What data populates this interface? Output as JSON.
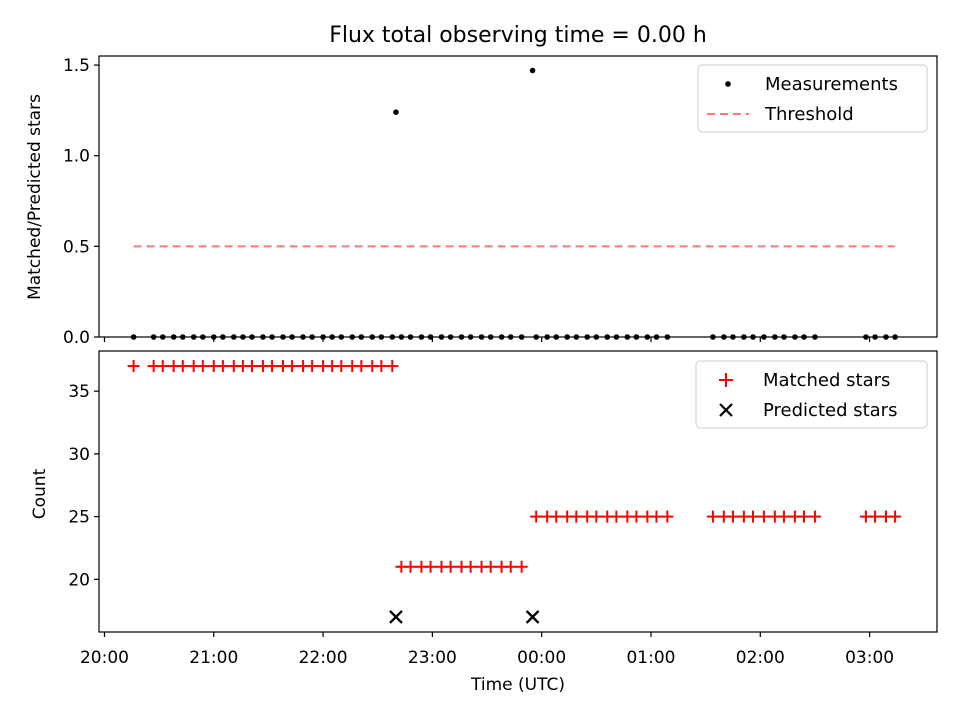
{
  "chart_data": [
    {
      "type": "scatter",
      "title": "Flux total observing time = 0.00 h",
      "ylabel": "Matched/Predicted stars",
      "xlabel": "",
      "xlim": [
        "19:57",
        "03:37"
      ],
      "ylim": [
        0,
        1.55
      ],
      "yticks": [
        0.0,
        0.5,
        1.0,
        1.5
      ],
      "ytick_labels": [
        "0.0",
        "0.5",
        "1.0",
        "1.5"
      ],
      "xticks": [
        "20:00",
        "21:00",
        "22:00",
        "23:00",
        "00:00",
        "01:00",
        "02:00",
        "03:00"
      ],
      "legend_position": "upper-right",
      "series": [
        {
          "name": "Measurements",
          "marker": "dot",
          "color": "#000000",
          "points": [
            [
              "20:16",
              0
            ],
            [
              "20:27",
              0
            ],
            [
              "20:32",
              0
            ],
            [
              "20:38",
              0
            ],
            [
              "20:43",
              0
            ],
            [
              "20:49",
              0
            ],
            [
              "20:54",
              0
            ],
            [
              "21:00",
              0
            ],
            [
              "21:05",
              0
            ],
            [
              "21:11",
              0
            ],
            [
              "21:16",
              0
            ],
            [
              "21:21",
              0
            ],
            [
              "21:27",
              0
            ],
            [
              "21:32",
              0
            ],
            [
              "21:38",
              0
            ],
            [
              "21:43",
              0
            ],
            [
              "21:49",
              0
            ],
            [
              "21:54",
              0
            ],
            [
              "22:00",
              0
            ],
            [
              "22:05",
              0
            ],
            [
              "22:10",
              0
            ],
            [
              "22:16",
              0
            ],
            [
              "22:21",
              0
            ],
            [
              "22:27",
              0
            ],
            [
              "22:32",
              0
            ],
            [
              "22:38",
              0
            ],
            [
              "22:40",
              1.24
            ],
            [
              "22:43",
              0
            ],
            [
              "22:48",
              0
            ],
            [
              "22:54",
              0
            ],
            [
              "22:59",
              0
            ],
            [
              "23:05",
              0
            ],
            [
              "23:10",
              0
            ],
            [
              "23:16",
              0
            ],
            [
              "23:21",
              0
            ],
            [
              "23:27",
              0
            ],
            [
              "23:32",
              0
            ],
            [
              "23:38",
              0
            ],
            [
              "23:43",
              0
            ],
            [
              "23:49",
              0
            ],
            [
              "23:55",
              1.47
            ],
            [
              "23:57",
              0
            ],
            [
              "00:03",
              0
            ],
            [
              "00:08",
              0
            ],
            [
              "00:14",
              0
            ],
            [
              "00:19",
              0
            ],
            [
              "00:25",
              0
            ],
            [
              "00:30",
              0
            ],
            [
              "00:36",
              0
            ],
            [
              "00:41",
              0
            ],
            [
              "00:47",
              0
            ],
            [
              "00:52",
              0
            ],
            [
              "00:58",
              0
            ],
            [
              "01:03",
              0
            ],
            [
              "01:09",
              0
            ],
            [
              "01:34",
              0
            ],
            [
              "01:40",
              0
            ],
            [
              "01:45",
              0
            ],
            [
              "01:51",
              0
            ],
            [
              "01:56",
              0
            ],
            [
              "02:02",
              0
            ],
            [
              "02:08",
              0
            ],
            [
              "02:13",
              0
            ],
            [
              "02:19",
              0
            ],
            [
              "02:24",
              0
            ],
            [
              "02:30",
              0
            ],
            [
              "02:58",
              0
            ],
            [
              "03:03",
              0
            ],
            [
              "03:09",
              0
            ],
            [
              "03:14",
              0
            ]
          ]
        },
        {
          "name": "Threshold",
          "marker": "dashed-line",
          "color": "#ff7777",
          "points": [
            [
              "20:16",
              0.5
            ],
            [
              "03:14",
              0.5
            ]
          ]
        }
      ]
    },
    {
      "type": "scatter",
      "title": "",
      "ylabel": "Count",
      "xlabel": "Time (UTC)",
      "xlim": [
        "19:57",
        "03:37"
      ],
      "ylim": [
        15.8,
        38.2
      ],
      "yticks": [
        20,
        25,
        30,
        35
      ],
      "ytick_labels": [
        "20",
        "25",
        "30",
        "35"
      ],
      "xticks": [
        "20:00",
        "21:00",
        "22:00",
        "23:00",
        "00:00",
        "01:00",
        "02:00",
        "03:00"
      ],
      "xtick_labels": [
        "20:00",
        "21:00",
        "22:00",
        "23:00",
        "00:00",
        "01:00",
        "02:00",
        "03:00"
      ],
      "legend_position": "upper-right",
      "series": [
        {
          "name": "Matched stars",
          "marker": "plus",
          "color": "#ff0000",
          "points": [
            [
              "20:16",
              37
            ],
            [
              "20:27",
              37
            ],
            [
              "20:32",
              37
            ],
            [
              "20:38",
              37
            ],
            [
              "20:43",
              37
            ],
            [
              "20:49",
              37
            ],
            [
              "20:54",
              37
            ],
            [
              "21:00",
              37
            ],
            [
              "21:05",
              37
            ],
            [
              "21:11",
              37
            ],
            [
              "21:16",
              37
            ],
            [
              "21:21",
              37
            ],
            [
              "21:27",
              37
            ],
            [
              "21:32",
              37
            ],
            [
              "21:38",
              37
            ],
            [
              "21:43",
              37
            ],
            [
              "21:49",
              37
            ],
            [
              "21:54",
              37
            ],
            [
              "22:00",
              37
            ],
            [
              "22:05",
              37
            ],
            [
              "22:10",
              37
            ],
            [
              "22:16",
              37
            ],
            [
              "22:21",
              37
            ],
            [
              "22:27",
              37
            ],
            [
              "22:32",
              37
            ],
            [
              "22:38",
              37
            ],
            [
              "22:43",
              21
            ],
            [
              "22:48",
              21
            ],
            [
              "22:54",
              21
            ],
            [
              "22:59",
              21
            ],
            [
              "23:05",
              21
            ],
            [
              "23:10",
              21
            ],
            [
              "23:16",
              21
            ],
            [
              "23:21",
              21
            ],
            [
              "23:27",
              21
            ],
            [
              "23:32",
              21
            ],
            [
              "23:38",
              21
            ],
            [
              "23:43",
              21
            ],
            [
              "23:49",
              21
            ],
            [
              "23:57",
              25
            ],
            [
              "00:03",
              25
            ],
            [
              "00:08",
              25
            ],
            [
              "00:14",
              25
            ],
            [
              "00:19",
              25
            ],
            [
              "00:25",
              25
            ],
            [
              "00:30",
              25
            ],
            [
              "00:36",
              25
            ],
            [
              "00:41",
              25
            ],
            [
              "00:47",
              25
            ],
            [
              "00:52",
              25
            ],
            [
              "00:58",
              25
            ],
            [
              "01:03",
              25
            ],
            [
              "01:09",
              25
            ],
            [
              "01:34",
              25
            ],
            [
              "01:40",
              25
            ],
            [
              "01:45",
              25
            ],
            [
              "01:51",
              25
            ],
            [
              "01:56",
              25
            ],
            [
              "02:02",
              25
            ],
            [
              "02:08",
              25
            ],
            [
              "02:13",
              25
            ],
            [
              "02:19",
              25
            ],
            [
              "02:24",
              25
            ],
            [
              "02:30",
              25
            ],
            [
              "02:58",
              25
            ],
            [
              "03:03",
              25
            ],
            [
              "03:09",
              25
            ],
            [
              "03:14",
              25
            ]
          ]
        },
        {
          "name": "Predicted stars",
          "marker": "x",
          "color": "#000000",
          "points": [
            [
              "22:40",
              17
            ],
            [
              "23:55",
              17
            ]
          ]
        }
      ]
    }
  ]
}
